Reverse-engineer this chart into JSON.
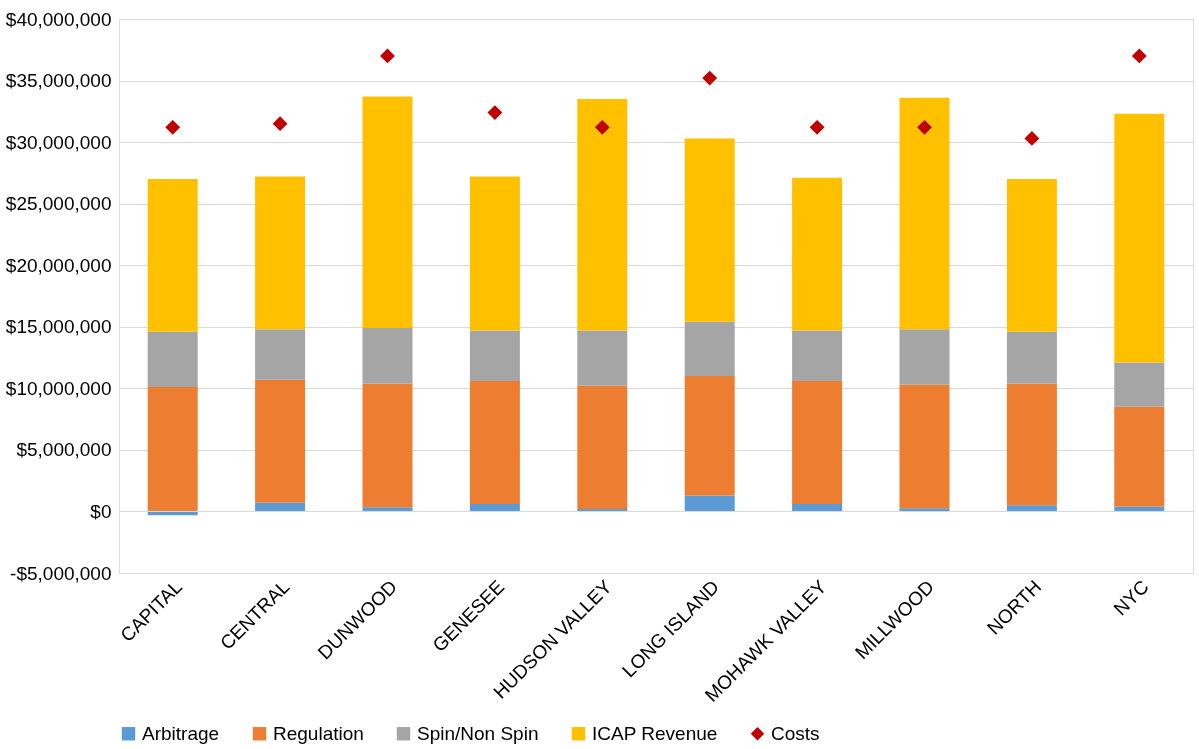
{
  "chart_data": {
    "type": "bar",
    "stacked": true,
    "categories": [
      "CAPITAL",
      "CENTRAL",
      "DUNWOOD",
      "GENESEE",
      "HUDSON VALLEY",
      "LONG ISLAND",
      "MOHAWK VALLEY",
      "MILLWOOD",
      "NORTH",
      "NYC"
    ],
    "series": [
      {
        "name": "Arbitrage",
        "color": "#5b9bd5",
        "values": [
          -300000,
          700000,
          350000,
          600000,
          200000,
          1300000,
          600000,
          250000,
          500000,
          400000
        ]
      },
      {
        "name": "Regulation",
        "color": "#ed7d31",
        "values": [
          10100000,
          10000000,
          10050000,
          10000000,
          10000000,
          9700000,
          10000000,
          10050000,
          9900000,
          8100000
        ]
      },
      {
        "name": "Spin/Non Spin",
        "color": "#a5a5a5",
        "values": [
          4500000,
          4100000,
          4500000,
          4100000,
          4500000,
          4400000,
          4100000,
          4500000,
          4200000,
          3600000
        ]
      },
      {
        "name": "ICAP Revenue",
        "color": "#ffc000",
        "values": [
          12400000,
          12400000,
          18800000,
          12500000,
          18800000,
          14900000,
          12400000,
          18800000,
          12400000,
          20200000
        ]
      },
      {
        "name": "Costs",
        "type": "scatter",
        "marker": "diamond",
        "color": "#c00000",
        "values": [
          31200000,
          31500000,
          37000000,
          32400000,
          31200000,
          35200000,
          31200000,
          31200000,
          30300000,
          37000000
        ]
      }
    ],
    "ylim": [
      -5000000,
      40000000
    ],
    "yticks": [
      {
        "value": -5000000,
        "label": "-$5,000,000"
      },
      {
        "value": 0,
        "label": "$0"
      },
      {
        "value": 5000000,
        "label": "$5,000,000"
      },
      {
        "value": 10000000,
        "label": "$10,000,000"
      },
      {
        "value": 15000000,
        "label": "$15,000,000"
      },
      {
        "value": 20000000,
        "label": "$20,000,000"
      },
      {
        "value": 25000000,
        "label": "$25,000,000"
      },
      {
        "value": 30000000,
        "label": "$30,000,000"
      },
      {
        "value": 35000000,
        "label": "$35,000,000"
      },
      {
        "value": 40000000,
        "label": "$40,000,000"
      }
    ],
    "grid": "y",
    "legend": "bottom"
  }
}
